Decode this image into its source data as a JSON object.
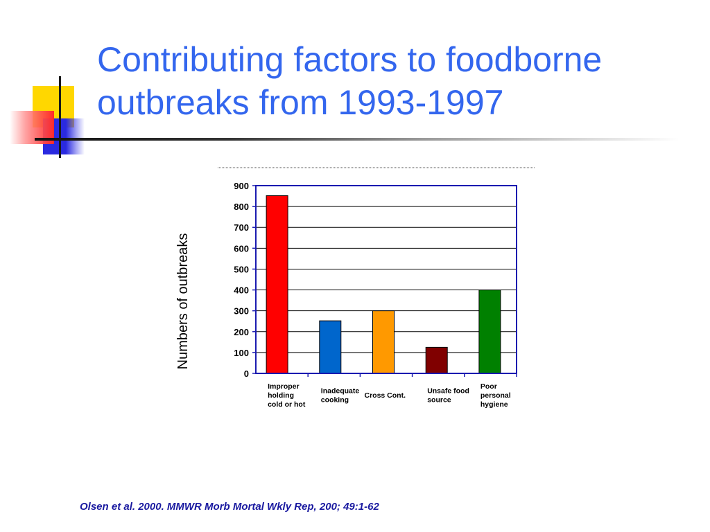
{
  "slide": {
    "title": "Contributing factors to foodborne outbreaks from 1993-1997",
    "citation": "Olsen et al. 2000. MMWR Morb Mortal Wkly Rep, 200; 49:1-62"
  },
  "colors": {
    "title": "#3366ee",
    "axis": "#1a1ab0",
    "gridline": "#000000"
  },
  "chart_data": {
    "type": "bar",
    "title": "",
    "xlabel": "",
    "ylabel": "Numbers of outbreaks",
    "ylim": [
      0,
      900
    ],
    "yticks": [
      0,
      100,
      200,
      300,
      400,
      500,
      600,
      700,
      800,
      900
    ],
    "grid": true,
    "legend": "none",
    "categories": [
      [
        "Improper",
        "holding",
        "cold or hot"
      ],
      [
        "Inadequate",
        "cooking"
      ],
      [
        "Cross Cont."
      ],
      [
        "Unsafe food",
        "source"
      ],
      [
        "Poor",
        "personal",
        "hygiene"
      ]
    ],
    "values": [
      852,
      252,
      300,
      125,
      400
    ],
    "bar_colors": [
      "#ff0000",
      "#0066cc",
      "#ff9900",
      "#800000",
      "#008000"
    ]
  }
}
